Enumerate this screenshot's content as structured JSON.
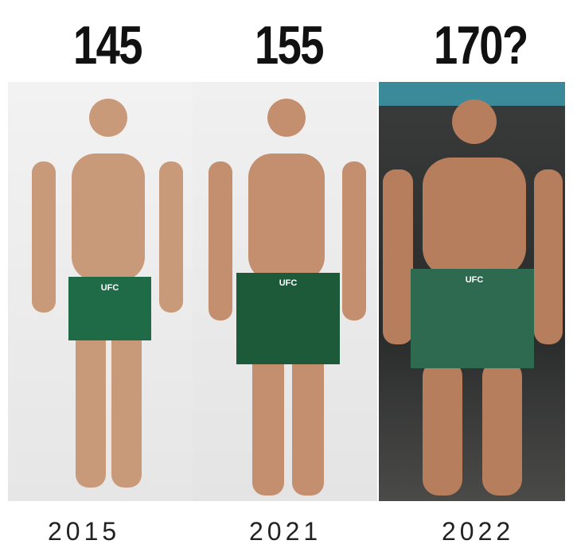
{
  "weights": [
    "145",
    "155",
    "170?"
  ],
  "years": [
    "2015",
    "2021",
    "2022"
  ],
  "photos": [
    {
      "logo": "UFC"
    },
    {
      "logo": "UFC"
    },
    {
      "logo": "UFC"
    }
  ]
}
